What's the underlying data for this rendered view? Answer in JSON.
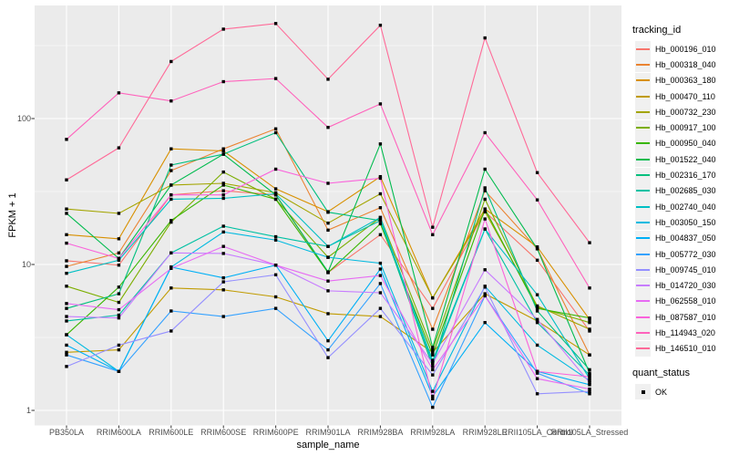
{
  "figure": {
    "background": "#FFFFFF",
    "panel_background": "#EBEBEB",
    "grid_color": "#FFFFFF",
    "tick_color": "#333333",
    "tick_label_color": "#4D4D4D",
    "point_color": "#000000"
  },
  "axes": {
    "x_title": "sample_name",
    "y_title": "FPKM + 1",
    "y_tick_labels": [
      "1",
      "10",
      "100"
    ]
  },
  "legend": {
    "tracking_title": "tracking_id",
    "quant_title": "quant_status",
    "quant_label": "OK"
  },
  "chart_data": {
    "type": "line",
    "title": "",
    "xlabel": "sample_name",
    "ylabel": "FPKM + 1",
    "y_scale": "log10",
    "y_major_ticks": [
      1,
      10,
      100
    ],
    "y_minor_ticks": [
      3.162,
      31.62,
      316.2
    ],
    "ylim": [
      0.79,
      595
    ],
    "grid": true,
    "legend_position": "right",
    "point_shape": "filled-square",
    "point_status": "OK",
    "categories": [
      "PB350LA",
      "RRIM600LA",
      "RRIM600LE",
      "RRIM600SE",
      "RRIM600PE",
      "RRIM901LA",
      "RRIM928BA",
      "RRIM928LA",
      "RRIM928LE",
      "RRII105LA_Control",
      "RRII105LA_Stressed"
    ],
    "series": [
      {
        "name": "Hb_000196_010",
        "color": "#F8766D",
        "values": [
          10.6,
          9.9,
          30,
          32,
          30,
          8.8,
          16,
          5.0,
          23,
          10.7,
          3.5
        ]
      },
      {
        "name": "Hb_000318_040",
        "color": "#EA8331",
        "values": [
          9.7,
          12,
          44,
          62,
          85,
          17.2,
          24.5,
          3.6,
          32,
          12.8,
          2.4
        ]
      },
      {
        "name": "Hb_000363_180",
        "color": "#D89000",
        "values": [
          16,
          15,
          62,
          60,
          33,
          23,
          40,
          5.9,
          24,
          13.2,
          4.2
        ]
      },
      {
        "name": "Hb_000470_110",
        "color": "#C09B00",
        "values": [
          2.5,
          2.6,
          6.9,
          6.7,
          6.0,
          4.6,
          4.4,
          2.5,
          6.3,
          4.1,
          2.4
        ]
      },
      {
        "name": "Hb_000732_230",
        "color": "#A3A500",
        "values": [
          24,
          22.4,
          35,
          36,
          31,
          19.2,
          30.5,
          5.9,
          23,
          5.2,
          3.6
        ]
      },
      {
        "name": "Hb_000917_100",
        "color": "#7CAE00",
        "values": [
          7.1,
          5.5,
          19.5,
          43,
          28,
          11.2,
          21,
          2.6,
          28,
          5.1,
          4.0
        ]
      },
      {
        "name": "Hb_000950_040",
        "color": "#39B600",
        "values": [
          3.3,
          7.0,
          20,
          35,
          28,
          8.8,
          19,
          2.4,
          24,
          5.0,
          4.3
        ]
      },
      {
        "name": "Hb_001522_040",
        "color": "#00BB4E",
        "values": [
          22.4,
          11,
          35,
          57,
          30,
          8.9,
          67,
          2.7,
          45,
          12.8,
          1.8
        ]
      },
      {
        "name": "Hb_002316_170",
        "color": "#00BF7D",
        "values": [
          5.0,
          6.3,
          48,
          57,
          80,
          22.8,
          20,
          2.0,
          33.5,
          4.8,
          1.9
        ]
      },
      {
        "name": "Hb_002685_030",
        "color": "#00C1A3",
        "values": [
          4.1,
          4.5,
          12,
          18.3,
          15.5,
          13.3,
          20,
          2.2,
          17.5,
          4.0,
          1.75
        ]
      },
      {
        "name": "Hb_002740_040",
        "color": "#00BFC4",
        "values": [
          8.7,
          10.7,
          28,
          28.4,
          30.5,
          13.3,
          21,
          2.1,
          17.5,
          6.2,
          1.65
        ]
      },
      {
        "name": "Hb_003050_150",
        "color": "#00BAE0",
        "values": [
          3.3,
          1.85,
          9.6,
          16.7,
          14.7,
          11.2,
          10.2,
          1.35,
          7.1,
          2.8,
          1.6
        ]
      },
      {
        "name": "Hb_004837_050",
        "color": "#00B0F6",
        "values": [
          2.8,
          1.85,
          9.6,
          8.1,
          9.9,
          3.0,
          9.3,
          1.25,
          4.0,
          1.85,
          1.5
        ]
      },
      {
        "name": "Hb_005772_030",
        "color": "#35A2FF",
        "values": [
          2.4,
          1.85,
          4.8,
          4.4,
          5.0,
          2.6,
          7.4,
          1.05,
          6.1,
          1.8,
          1.3
        ]
      },
      {
        "name": "Hb_009745_010",
        "color": "#9590FF",
        "values": [
          2.0,
          2.8,
          3.5,
          7.6,
          8.5,
          2.3,
          5.0,
          1.75,
          7.0,
          1.3,
          1.35
        ]
      },
      {
        "name": "Hb_014720_030",
        "color": "#C77CFF",
        "values": [
          4.4,
          4.3,
          12,
          11.9,
          9.9,
          6.6,
          6.4,
          2.1,
          9.2,
          4.2,
          1.55
        ]
      },
      {
        "name": "Hb_062558_010",
        "color": "#E76BF3",
        "values": [
          5.4,
          4.9,
          9.4,
          13.3,
          9.9,
          7.7,
          8.4,
          1.9,
          6.1,
          1.65,
          1.4
        ]
      },
      {
        "name": "Hb_087587_010",
        "color": "#FA62DB",
        "values": [
          14,
          11,
          30,
          30,
          45,
          36,
          39,
          1.2,
          20.5,
          1.85,
          1.7
        ]
      },
      {
        "name": "Hb_114943_020",
        "color": "#FF62BC",
        "values": [
          72,
          150,
          132,
          179,
          188,
          87,
          126,
          16,
          80,
          27.7,
          6.9
        ]
      },
      {
        "name": "Hb_146510_010",
        "color": "#FF6A98",
        "values": [
          38,
          63,
          246,
          410,
          448,
          186,
          436,
          18,
          357,
          42.6,
          14.1
        ]
      }
    ]
  }
}
